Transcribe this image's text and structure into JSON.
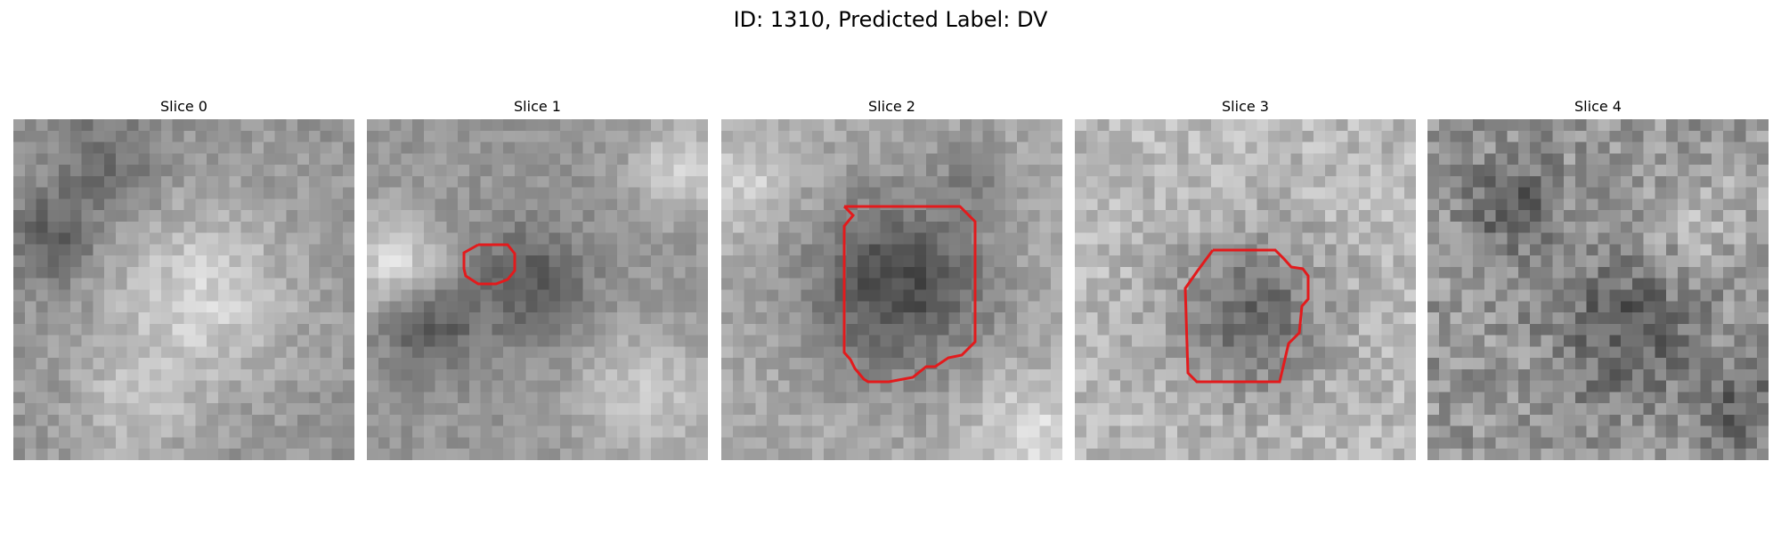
{
  "figure": {
    "title": "ID: 1310, Predicted Label: DV"
  },
  "panels": [
    {
      "title": "Slice 0",
      "has_contour": false
    },
    {
      "title": "Slice 1",
      "has_contour": true
    },
    {
      "title": "Slice 2",
      "has_contour": true
    },
    {
      "title": "Slice 3",
      "has_contour": true
    },
    {
      "title": "Slice 4",
      "has_contour": false
    }
  ],
  "style": {
    "contour_color": "#e31a1c",
    "colormap": "grayscale"
  }
}
